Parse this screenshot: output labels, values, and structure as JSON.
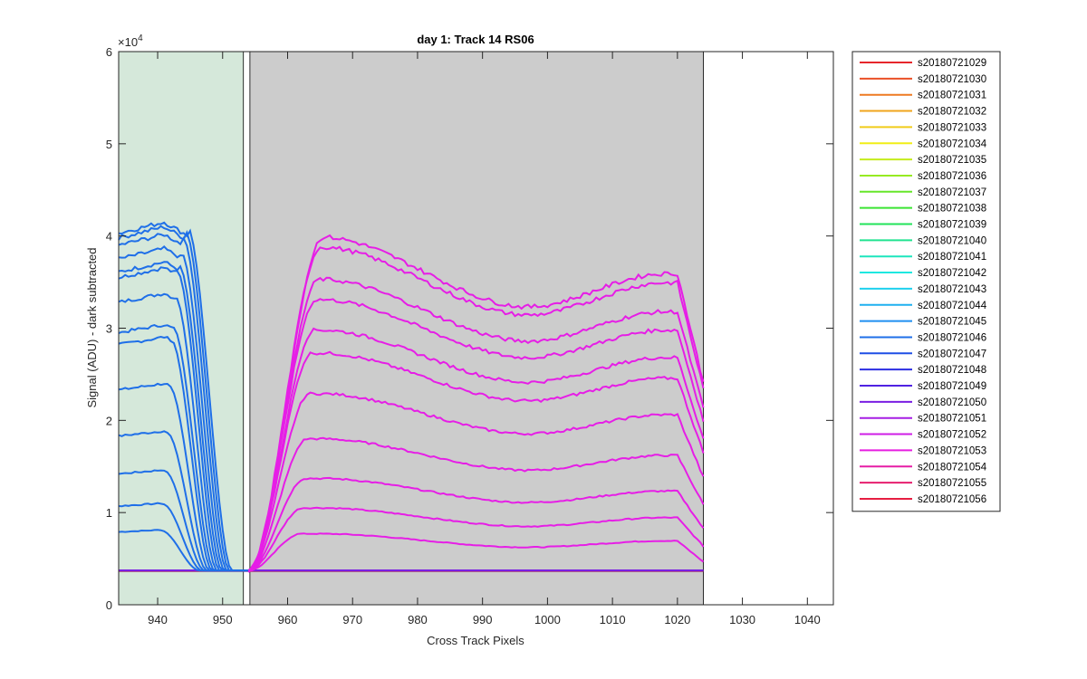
{
  "chart_data": {
    "type": "line",
    "title": "day 1: Track 14  RS06",
    "xlabel": "Cross Track Pixels",
    "ylabel": "Signal (ADU) - dark subtracted",
    "xlim": [
      934,
      1044
    ],
    "ylim": [
      0,
      60000
    ],
    "y_exponent_label": "×10",
    "y_exponent_power": "4",
    "x_ticks": [
      940,
      950,
      960,
      970,
      980,
      990,
      1000,
      1010,
      1020,
      1030,
      1040
    ],
    "x_tick_labels": [
      "940",
      "950",
      "960",
      "970",
      "980",
      "990",
      "1000",
      "1010",
      "1020",
      "1030",
      "1040"
    ],
    "y_ticks": [
      0,
      10000,
      20000,
      30000,
      40000,
      50000,
      60000
    ],
    "y_tick_labels": [
      "0",
      "1",
      "2",
      "3",
      "4",
      "5",
      "6"
    ],
    "grid": false,
    "legend_position": "outside-right",
    "regions": [
      {
        "x_start": 934,
        "x_end": 953.2,
        "color": "#d5e8da"
      },
      {
        "x_start": 954.2,
        "x_end": 1024,
        "color": "#cccccc"
      }
    ],
    "baseline": 3700,
    "left_group": {
      "color": "#1f6fe8",
      "x_start": 934,
      "series_levels": [
        7900,
        10700,
        14200,
        18300,
        23300,
        28200,
        29500,
        32800,
        35500,
        36100,
        37500,
        39000,
        39800,
        40300
      ],
      "peak_x": 941,
      "drop_start_range": [
        940.5,
        944.5
      ],
      "drop_end_range": [
        946.5,
        951.5
      ]
    },
    "right_group": {
      "color": "#e61ee6",
      "rise_start": 954,
      "x_end": 1024,
      "series_levels": [
        7700,
        10500,
        13700,
        18000,
        22900,
        27300,
        29800,
        33100,
        35300,
        38800,
        39900
      ],
      "peak_x": 965,
      "mid_x": 997,
      "right_peak_x": 1018,
      "mid_ratio": 0.81,
      "right_ratio": 0.9
    },
    "legend_entries": [
      {
        "name": "s20180721029",
        "color": "#e6262b"
      },
      {
        "name": "s20180721030",
        "color": "#ea4f26"
      },
      {
        "name": "s20180721031",
        "color": "#ee7a22"
      },
      {
        "name": "s20180721032",
        "color": "#f0a51d"
      },
      {
        "name": "s20180721033",
        "color": "#f1cc1a"
      },
      {
        "name": "s20180721034",
        "color": "#f0ee17"
      },
      {
        "name": "s20180721035",
        "color": "#c5ec1c"
      },
      {
        "name": "s20180721036",
        "color": "#96ea22"
      },
      {
        "name": "s20180721037",
        "color": "#66e62a"
      },
      {
        "name": "s20180721038",
        "color": "#3be433"
      },
      {
        "name": "s20180721039",
        "color": "#22e35a"
      },
      {
        "name": "s20180721040",
        "color": "#20e390"
      },
      {
        "name": "s20180721041",
        "color": "#1ee5bd"
      },
      {
        "name": "s20180721042",
        "color": "#1de8e0"
      },
      {
        "name": "s20180721043",
        "color": "#1ed0ee"
      },
      {
        "name": "s20180721044",
        "color": "#1fb0ef"
      },
      {
        "name": "s20180721045",
        "color": "#1f8ff0"
      },
      {
        "name": "s20180721046",
        "color": "#1f6fe8"
      },
      {
        "name": "s20180721047",
        "color": "#1f4ee6"
      },
      {
        "name": "s20180721048",
        "color": "#2c2ee3"
      },
      {
        "name": "s20180721049",
        "color": "#4f22e2"
      },
      {
        "name": "s20180721050",
        "color": "#7a1ee2"
      },
      {
        "name": "s20180721051",
        "color": "#a51ee4"
      },
      {
        "name": "s20180721052",
        "color": "#cf1ee6"
      },
      {
        "name": "s20180721053",
        "color": "#e61ee0"
      },
      {
        "name": "s20180721054",
        "color": "#e61ea6"
      },
      {
        "name": "s20180721055",
        "color": "#e61e6e"
      },
      {
        "name": "s20180721056",
        "color": "#e61e42"
      }
    ]
  }
}
